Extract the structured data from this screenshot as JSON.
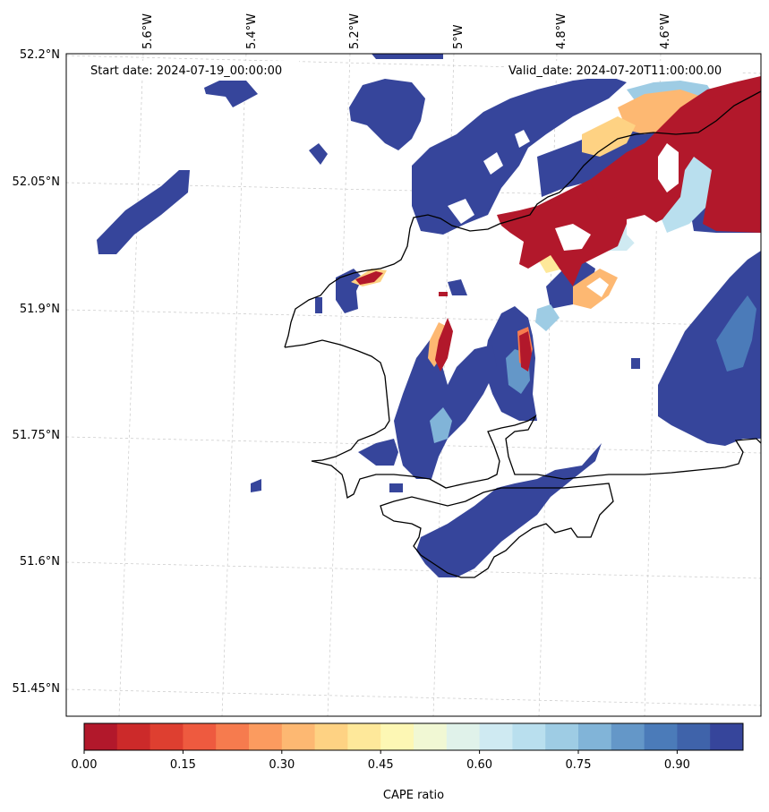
{
  "map": {
    "start_date": "Start date: 2024-07-19_00:00:00",
    "valid_date": "Valid_date: 2024-07-20T11:00:00.00",
    "lon_labels": [
      "5.6°W",
      "5.4°W",
      "5.2°W",
      "5°W",
      "4.8°W",
      "4.6°W"
    ],
    "lat_labels": [
      "52.2°N",
      "52.05°N",
      "51.9°N",
      "51.75°N",
      "51.6°N",
      "51.45°N"
    ],
    "gridlines": true,
    "coastline_color": "#000000",
    "field": "CAPE ratio"
  },
  "colorbar": {
    "label": "CAPE ratio",
    "tick_labels": [
      "0.00",
      "0.15",
      "0.30",
      "0.45",
      "0.60",
      "0.75",
      "0.90"
    ],
    "range": [
      0,
      1
    ],
    "levels": 20,
    "colors": [
      "#b2182b",
      "#cc2a2a",
      "#de3f30",
      "#ee5a3f",
      "#f67b4e",
      "#fb9b5f",
      "#fdb872",
      "#fed283",
      "#fee89a",
      "#fdf7b4",
      "#f1f8d4",
      "#e0f2ea",
      "#cfeaf2",
      "#b9dfee",
      "#9ecce4",
      "#81b4d8",
      "#6497c8",
      "#4b7bb9",
      "#3f63aa",
      "#36459b"
    ]
  }
}
